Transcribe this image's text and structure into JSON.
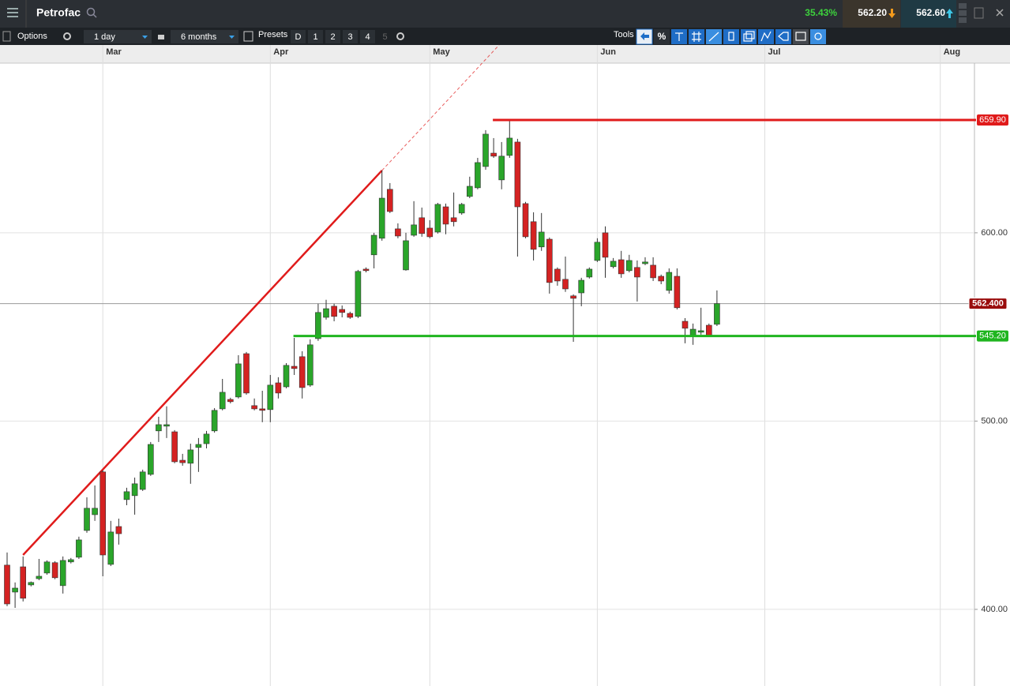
{
  "toolbar": {
    "symbol": "Petrofac",
    "change": "35.43%",
    "sell": "562.20",
    "buy": "562.60",
    "options": "Options",
    "interval": "1 day",
    "range": "6 months",
    "presets": "Presets",
    "preset_buttons": [
      "D",
      "1",
      "2",
      "3",
      "4",
      "5"
    ],
    "tools": "Tools",
    "percent": "%"
  },
  "chart_data": {
    "type": "candlestick",
    "categories": [
      null,
      null,
      null,
      null,
      null,
      null,
      null,
      null,
      null,
      null,
      null,
      null,
      "Mar",
      null,
      null,
      null,
      null,
      null,
      null,
      null,
      null,
      null,
      null,
      null,
      null,
      null,
      null,
      null,
      null,
      null,
      null,
      null,
      null,
      "Apr",
      null,
      null,
      null,
      null,
      null,
      null,
      null,
      null,
      null,
      null,
      null,
      null,
      null,
      null,
      null,
      null,
      null,
      null,
      null,
      "May",
      null,
      null,
      null,
      null,
      null,
      null,
      null,
      null,
      null,
      null,
      null,
      null,
      null,
      null,
      null,
      null,
      null,
      null,
      null,
      null,
      "Jun",
      null,
      null,
      null,
      null,
      null,
      null,
      null,
      null,
      null,
      null,
      null,
      null,
      null,
      null,
      null,
      null,
      null,
      null,
      null,
      null,
      "Jul",
      null,
      null,
      null,
      null,
      null,
      null,
      null,
      null,
      null,
      null,
      null,
      null,
      null,
      null,
      null,
      null,
      null,
      null,
      null,
      null,
      null,
      "Aug",
      null,
      null,
      null
    ],
    "open": [
      423.5,
      409.2,
      422.6,
      413.0,
      416.3,
      419.3,
      424.8,
      412.6,
      425.2,
      427.7,
      441.9,
      450.3,
      473.0,
      423.9,
      444.0,
      458.3,
      460.4,
      463.7,
      471.7,
      494.8,
      497.3,
      494.3,
      479.2,
      477.6,
      486.0,
      488.0,
      494.8,
      506.5,
      511.5,
      512.8,
      535.8,
      508.2,
      506.5,
      506.1,
      520.3,
      518.2,
      529.1,
      534.2,
      519.1,
      543.8,
      555.1,
      561.0,
      559.3,
      557.2,
      555.6,
      580.7,
      588.3,
      597.1,
      623.1,
      602.1,
      580.3,
      598.7,
      608.0,
      602.5,
      600.4,
      613.8,
      608.0,
      610.5,
      619.3,
      623.9,
      635.2,
      642.3,
      628.1,
      641.1,
      648.2,
      615.5,
      605.9,
      592.5,
      596.6,
      580.7,
      575.3,
      566.5,
      568.1,
      576.5,
      585.3,
      600.0,
      582.0,
      585.7,
      579.9,
      581.6,
      583.6,
      582.8,
      576.9,
      569.4,
      576.9,
      553.0,
      545.5,
      547.2,
      550.9,
      551.4,
      null,
      null,
      null,
      null,
      null,
      null,
      null,
      null,
      null,
      null,
      null,
      null,
      null,
      null,
      null,
      null,
      null,
      null,
      null,
      null,
      null,
      null,
      null,
      null,
      null,
      null,
      null,
      null,
      null,
      null,
      null
    ],
    "high": [
      430.2,
      414.3,
      428.1,
      414.8,
      426.8,
      426.0,
      425.6,
      428.1,
      427.3,
      438.6,
      459.5,
      465.8,
      473.8,
      447.0,
      448.2,
      464.6,
      470.0,
      474.2,
      488.9,
      502.3,
      507.8,
      495.2,
      482.6,
      488.0,
      491.0,
      494.8,
      506.9,
      522.4,
      512.4,
      535.0,
      536.7,
      512.0,
      516.1,
      524.5,
      523.3,
      530.8,
      544.2,
      537.1,
      543.4,
      562.3,
      564.4,
      562.3,
      561.4,
      558.1,
      580.3,
      581.6,
      600.0,
      633.1,
      626.4,
      605.0,
      600.0,
      616.8,
      613.4,
      606.7,
      615.9,
      615.5,
      621.4,
      615.9,
      629.8,
      639.8,
      654.5,
      650.3,
      648.2,
      659.9,
      649.9,
      616.4,
      610.9,
      610.5,
      597.5,
      581.6,
      587.4,
      567.3,
      576.1,
      581.6,
      597.1,
      603.4,
      586.6,
      590.4,
      588.3,
      585.3,
      587.0,
      587.0,
      577.8,
      581.1,
      581.1,
      554.7,
      551.8,
      560.2,
      551.8,
      569.4,
      null,
      null,
      null,
      null,
      null,
      null,
      null,
      null,
      null,
      null,
      null,
      null,
      null,
      null,
      null,
      null,
      null,
      null,
      null,
      null,
      null,
      null,
      null,
      null,
      null,
      null,
      null,
      null,
      null,
      null,
      null
    ],
    "low": [
      401.7,
      400.8,
      404.2,
      412.2,
      415.5,
      418.4,
      416.0,
      408.4,
      424.4,
      426.8,
      440.7,
      447.0,
      417.6,
      423.0,
      434.4,
      455.3,
      450.3,
      462.9,
      470.9,
      488.9,
      491.0,
      477.6,
      476.3,
      466.7,
      473.0,
      485.5,
      493.9,
      505.7,
      509.4,
      512.0,
      514.0,
      505.7,
      499.4,
      499.4,
      512.0,
      517.4,
      524.5,
      512.0,
      518.2,
      542.6,
      553.9,
      553.0,
      555.1,
      554.3,
      554.7,
      579.0,
      581.1,
      595.8,
      610.5,
      597.1,
      579.9,
      597.9,
      597.9,
      597.1,
      599.6,
      599.2,
      603.4,
      609.6,
      618.4,
      623.1,
      633.5,
      639.8,
      623.1,
      639.8,
      587.4,
      597.1,
      585.3,
      590.4,
      567.7,
      571.9,
      568.6,
      542.1,
      561.0,
      575.7,
      584.5,
      576.1,
      581.1,
      576.1,
      579.0,
      563.5,
      582.8,
      574.4,
      572.7,
      567.7,
      559.3,
      541.3,
      540.5,
      545.9,
      544.7,
      550.5,
      null,
      null,
      null,
      null,
      null,
      null,
      null,
      null,
      null,
      null,
      null,
      null,
      null,
      null,
      null,
      null,
      null,
      null,
      null,
      null,
      null,
      null,
      null,
      null,
      null,
      null,
      null,
      null,
      null,
      null,
      null
    ],
    "close": [
      402.9,
      411.3,
      405.9,
      414.3,
      417.6,
      425.2,
      416.8,
      426.0,
      426.4,
      436.9,
      453.7,
      453.7,
      428.9,
      441.1,
      440.2,
      462.5,
      466.7,
      473.0,
      487.6,
      498.1,
      498.1,
      478.4,
      477.9,
      484.7,
      487.6,
      493.1,
      505.7,
      515.3,
      510.3,
      530.4,
      514.9,
      506.5,
      505.7,
      519.1,
      514.9,
      529.6,
      527.9,
      517.8,
      540.5,
      557.7,
      559.7,
      555.6,
      557.7,
      555.1,
      579.5,
      579.9,
      598.7,
      618.4,
      611.3,
      598.3,
      595.8,
      604.2,
      599.6,
      597.9,
      615.1,
      604.6,
      605.9,
      615.1,
      624.7,
      637.3,
      652.4,
      640.7,
      640.7,
      650.3,
      613.8,
      597.9,
      591.2,
      600.4,
      573.6,
      574.4,
      570.2,
      565.2,
      574.8,
      580.7,
      595.0,
      587.0,
      584.9,
      578.2,
      585.3,
      576.5,
      584.5,
      576.1,
      574.4,
      579.0,
      560.2,
      549.3,
      548.8,
      548.0,
      545.5,
      562.4,
      null,
      null,
      null,
      null,
      null,
      null,
      null,
      null,
      null,
      null,
      null,
      null,
      null,
      null,
      null,
      null,
      null,
      null,
      null,
      null,
      null,
      null,
      null,
      null,
      null,
      null,
      null,
      null,
      null,
      null,
      null
    ],
    "up_color": "#2aa52a",
    "down_color": "#d42222",
    "ylim": [
      359.3,
      690.1
    ],
    "yticks": [
      {
        "value": 400,
        "label": "400.00"
      },
      {
        "value": 500,
        "label": "500.00"
      },
      {
        "value": 600,
        "label": "600.00"
      }
    ],
    "grid": true,
    "levels": [
      {
        "value": 659.9,
        "label": "659.90",
        "color": "#e01b1b",
        "from": 61
      },
      {
        "value": 545.2,
        "label": "545.20",
        "color": "#1fb51f",
        "from": 36
      }
    ],
    "last_price": {
      "value": 562.4,
      "label": "562.400",
      "color": "#9a0d0d"
    },
    "trendline": {
      "from": [
        2,
        428.9
      ],
      "to": [
        47,
        633.1
      ],
      "color": "#e01b1b"
    }
  }
}
